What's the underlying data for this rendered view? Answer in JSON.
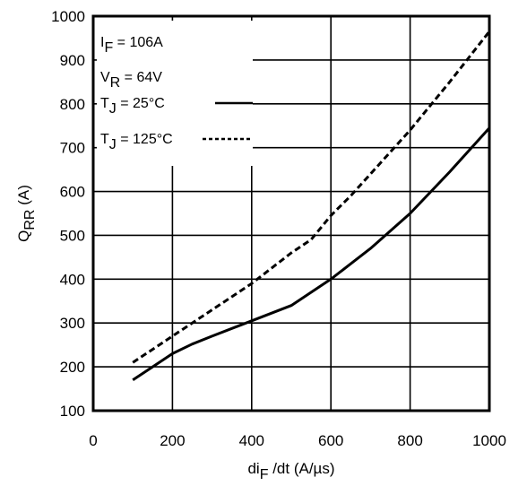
{
  "chart_data": {
    "type": "line",
    "xlabel": {
      "main": "di",
      "sub": "F",
      "rest": " /dt (A/µs)"
    },
    "ylabel": {
      "main": "Q",
      "sub": "RR",
      "rest": " (A)"
    },
    "xlim": [
      0,
      1000
    ],
    "ylim": [
      100,
      1000
    ],
    "xticks": [
      "0",
      "200",
      "400",
      "600",
      "800",
      "1000"
    ],
    "yticks": [
      "100",
      "200",
      "300",
      "400",
      "500",
      "600",
      "700",
      "800",
      "900",
      "1000"
    ],
    "grid": true,
    "conditions": [
      {
        "main": "I",
        "sub": "F",
        "rest": " = 106A"
      },
      {
        "main": "V",
        "sub": "R",
        "rest": " = 64V"
      }
    ],
    "series": [
      {
        "name": {
          "main": "T",
          "sub": "J",
          "rest": " = 25°C"
        },
        "style": "solid",
        "x": [
          100,
          150,
          200,
          250,
          300,
          400,
          500,
          550,
          600,
          650,
          700,
          800,
          900,
          1000
        ],
        "y": [
          170,
          200,
          230,
          252,
          270,
          305,
          340,
          370,
          400,
          435,
          470,
          550,
          645,
          745
        ]
      },
      {
        "name": {
          "main": "T",
          "sub": "J",
          "rest": " = 125°C"
        },
        "style": "dashed",
        "x": [
          100,
          150,
          200,
          250,
          300,
          400,
          500,
          550,
          600,
          650,
          700,
          800,
          900,
          1000
        ],
        "y": [
          210,
          240,
          270,
          300,
          330,
          390,
          460,
          490,
          545,
          590,
          640,
          740,
          850,
          965
        ]
      }
    ]
  }
}
